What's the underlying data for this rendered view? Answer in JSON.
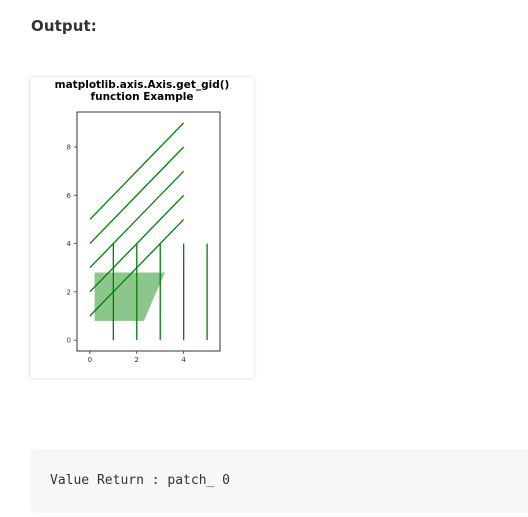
{
  "output_heading": "Output:",
  "figure": {
    "title_line1": "matplotlib.axis.Axis.get_gid()",
    "title_line2": "function Example"
  },
  "chart_data": {
    "type": "line",
    "title": "matplotlib.axis.Axis.get_gid() function Example",
    "xlabel": "",
    "ylabel": "",
    "xlim": [
      -0.55,
      5.55
    ],
    "ylim": [
      -0.45,
      9.45
    ],
    "xticks": [
      0,
      2,
      4
    ],
    "yticks": [
      0,
      2,
      4,
      6,
      8
    ],
    "grid": false,
    "line_color": "#008000",
    "patch_color": "#008000",
    "diagonal_lines": [
      {
        "x": [
          0,
          4
        ],
        "y": [
          1,
          5
        ]
      },
      {
        "x": [
          0,
          4
        ],
        "y": [
          2,
          6
        ]
      },
      {
        "x": [
          0,
          4
        ],
        "y": [
          3,
          7
        ]
      },
      {
        "x": [
          0,
          4
        ],
        "y": [
          4,
          8
        ]
      },
      {
        "x": [
          0,
          4
        ],
        "y": [
          5,
          9
        ]
      }
    ],
    "vertical_lines": [
      {
        "x": [
          1,
          1
        ],
        "y": [
          0,
          4
        ]
      },
      {
        "x": [
          2,
          2
        ],
        "y": [
          0,
          4
        ]
      },
      {
        "x": [
          3,
          3
        ],
        "y": [
          0,
          4
        ]
      },
      {
        "x": [
          4,
          4
        ],
        "y": [
          0,
          4
        ]
      },
      {
        "x": [
          5,
          5
        ],
        "y": [
          0,
          4
        ]
      }
    ],
    "patch_polygon": {
      "x": [
        0.2,
        3.2,
        2.3,
        0.2
      ],
      "y": [
        2.8,
        2.8,
        0.8,
        0.8
      ],
      "alpha": 0.45
    }
  },
  "code_output": {
    "text": "Value Return : patch_ 0"
  }
}
